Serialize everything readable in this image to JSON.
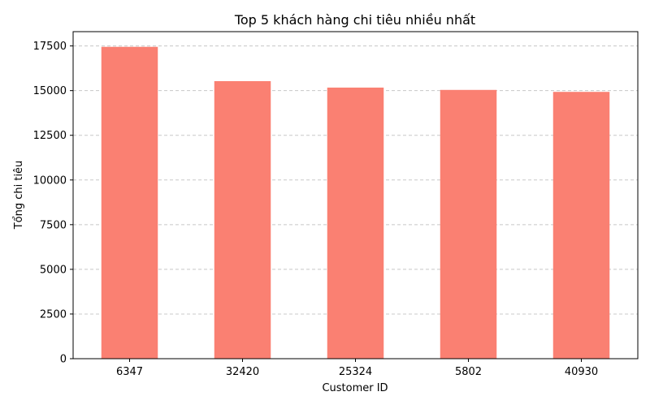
{
  "chart_data": {
    "type": "bar",
    "title": "Top 5 khách hàng chi tiêu nhiều nhất",
    "xlabel": "Customer ID",
    "ylabel": "Tổng chi tiêu",
    "categories": [
      "6347",
      "32420",
      "25324",
      "5802",
      "40930"
    ],
    "values": [
      17450,
      15530,
      15170,
      15040,
      14930
    ],
    "ylim": [
      0,
      18300
    ],
    "yticks": [
      0,
      2500,
      5000,
      7500,
      10000,
      12500,
      15000,
      17500
    ],
    "grid": "y-dashed",
    "bar_color": "#fa8072",
    "grid_color": "#c8c8c8"
  }
}
